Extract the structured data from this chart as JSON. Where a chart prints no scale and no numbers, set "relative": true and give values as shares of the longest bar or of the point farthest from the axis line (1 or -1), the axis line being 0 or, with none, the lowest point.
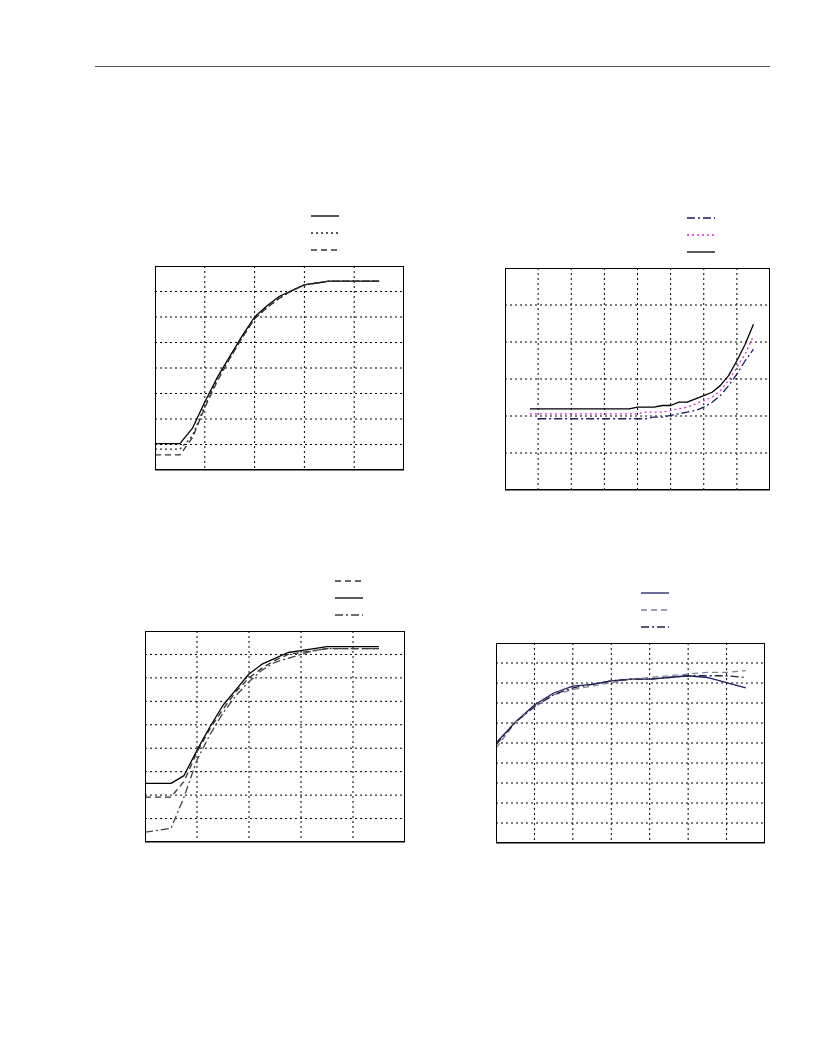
{
  "chart_data": [
    {
      "type": "line",
      "relative": true,
      "grid": true,
      "tick_labels": false,
      "categories": [
        null,
        null,
        null,
        null,
        null,
        null,
        null,
        null,
        null,
        null,
        null,
        null,
        null,
        null,
        null,
        null,
        null,
        null,
        null,
        null,
        null
      ],
      "series": [
        {
          "color": "#000000",
          "line_style": "solid",
          "values": [
            0.14,
            0.14,
            0.14,
            0.22,
            0.36,
            0.49,
            0.6,
            0.71,
            0.81,
            0.87,
            0.92,
            0.95,
            0.98,
            0.99,
            1,
            1,
            1,
            1,
            1,
            null,
            null
          ]
        },
        {
          "color": "#222222",
          "line_style": "dotted",
          "values": [
            0.11,
            0.11,
            0.11,
            0.18,
            0.34,
            0.48,
            0.59,
            0.7,
            0.8,
            0.86,
            0.91,
            0.95,
            0.98,
            0.99,
            1,
            1,
            1,
            1,
            1,
            null,
            null
          ]
        },
        {
          "color": "#333333",
          "line_style": "dashed",
          "values": [
            0.08,
            0.08,
            0.08,
            0.17,
            0.33,
            0.47,
            0.59,
            0.7,
            0.8,
            0.86,
            0.91,
            0.95,
            0.98,
            0.99,
            1,
            1,
            1,
            1,
            1,
            null,
            null
          ]
        }
      ]
    },
    {
      "type": "line",
      "relative": true,
      "grid": true,
      "tick_labels": false,
      "categories": [
        null,
        null,
        null,
        null,
        null,
        null,
        null,
        null,
        null,
        null,
        null,
        null,
        null,
        null,
        null,
        null,
        null,
        null,
        null,
        null,
        null,
        null,
        null,
        null,
        null,
        null,
        null,
        null,
        null,
        null,
        null,
        null,
        null
      ],
      "series": [
        {
          "color": "#1f1f5c",
          "line_style": "dashdot",
          "values": [
            null,
            null,
            null,
            null,
            0.43,
            0.43,
            0.43,
            0.43,
            0.43,
            0.43,
            0.43,
            0.43,
            0.43,
            0.43,
            0.43,
            0.43,
            0.43,
            0.43,
            0.44,
            0.44,
            0.45,
            0.46,
            0.47,
            0.48,
            0.5,
            0.53,
            0.57,
            0.63,
            0.7,
            0.78,
            0.85,
            null,
            null
          ]
        },
        {
          "color": "#cc33cc",
          "line_style": "dotted",
          "values": [
            null,
            null,
            null,
            0.46,
            0.46,
            0.46,
            0.46,
            0.46,
            0.46,
            0.46,
            0.46,
            0.46,
            0.46,
            0.46,
            0.46,
            0.46,
            0.46,
            0.47,
            0.47,
            0.47,
            0.48,
            0.49,
            0.5,
            0.52,
            0.54,
            0.56,
            0.6,
            0.66,
            0.74,
            0.82,
            0.93,
            null,
            null
          ]
        },
        {
          "color": "#000000",
          "line_style": "solid",
          "values": [
            null,
            null,
            null,
            0.49,
            0.49,
            0.49,
            0.49,
            0.49,
            0.49,
            0.49,
            0.49,
            0.49,
            0.49,
            0.49,
            0.49,
            0.49,
            0.5,
            0.5,
            0.5,
            0.51,
            0.51,
            0.53,
            0.53,
            0.55,
            0.57,
            0.59,
            0.63,
            0.69,
            0.78,
            0.88,
            1,
            null,
            null
          ]
        }
      ]
    },
    {
      "type": "line",
      "relative": true,
      "grid": true,
      "tick_labels": false,
      "categories": [
        null,
        null,
        null,
        null,
        null,
        null,
        null,
        null,
        null,
        null,
        null,
        null,
        null,
        null,
        null,
        null,
        null,
        null,
        null,
        null,
        null
      ],
      "series": [
        {
          "color": "#333333",
          "line_style": "dashed",
          "values": [
            0.23,
            0.23,
            0.23,
            0.31,
            0.46,
            0.58,
            0.68,
            0.77,
            0.84,
            0.89,
            0.93,
            0.96,
            0.97,
            0.98,
            0.99,
            0.99,
            0.99,
            0.99,
            0.99,
            null,
            null
          ]
        },
        {
          "color": "#000000",
          "line_style": "solid",
          "values": [
            0.3,
            0.3,
            0.3,
            0.34,
            0.47,
            0.59,
            0.7,
            0.78,
            0.86,
            0.91,
            0.94,
            0.97,
            0.98,
            0.99,
            1,
            1,
            1,
            1,
            1,
            null,
            null
          ]
        },
        {
          "color": "#444444",
          "line_style": "dashdot",
          "values": [
            0.05,
            0.06,
            0.07,
            0.23,
            0.42,
            0.55,
            0.66,
            0.75,
            0.82,
            0.88,
            0.92,
            0.94,
            0.96,
            0.98,
            0.99,
            0.99,
            0.99,
            0.99,
            0.99,
            null,
            null
          ]
        }
      ]
    },
    {
      "type": "line",
      "relative": true,
      "grid": true,
      "tick_labels": false,
      "categories": [
        null,
        null,
        null,
        null,
        null,
        null,
        null,
        null,
        null,
        null,
        null,
        null,
        null,
        null,
        null
      ],
      "series": [
        {
          "color": "#1f1f66",
          "line_style": "solid",
          "values": [
            0.58,
            0.7,
            0.8,
            0.87,
            0.91,
            0.92,
            0.94,
            0.95,
            0.95,
            0.96,
            0.97,
            0.96,
            0.93,
            0.9,
            null
          ]
        },
        {
          "color": "#7f7f99",
          "line_style": "dashed",
          "values": [
            0.55,
            0.7,
            0.79,
            0.86,
            0.89,
            0.91,
            0.93,
            0.95,
            0.96,
            0.97,
            0.98,
            0.99,
            0.99,
            1,
            null
          ]
        },
        {
          "color": "#222244",
          "line_style": "dashdot",
          "values": [
            0.57,
            0.7,
            0.79,
            0.86,
            0.9,
            0.92,
            0.94,
            0.95,
            0.95,
            0.96,
            0.97,
            0.97,
            0.97,
            0.96,
            null
          ]
        }
      ]
    }
  ]
}
